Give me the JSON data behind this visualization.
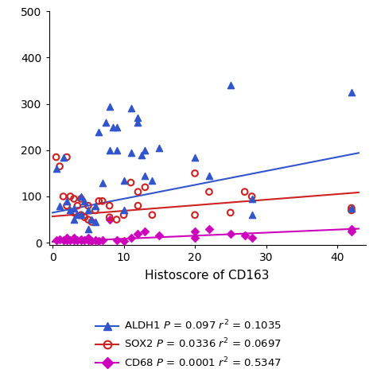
{
  "xlabel": "Histoscore of CD163",
  "xlim": [
    -0.5,
    44
  ],
  "ylim": [
    -5,
    500
  ],
  "xticks": [
    0,
    10,
    20,
    30,
    40
  ],
  "yticks": [
    0,
    100,
    200,
    300,
    400,
    500
  ],
  "aldh1_color": "#3355cc",
  "sox2_color": "#cc2222",
  "cd68_color": "#cc00bb",
  "aldh1_x": [
    0.5,
    1,
    1.5,
    2,
    2.5,
    3,
    3,
    3.5,
    4,
    4,
    4.5,
    5,
    5,
    5.5,
    6,
    6,
    6.5,
    7,
    7.5,
    8,
    8,
    8.5,
    9,
    9,
    10,
    10,
    11,
    11,
    12,
    12,
    12.5,
    13,
    13,
    14,
    15,
    20,
    22,
    25,
    28,
    28,
    42,
    42
  ],
  "aldh1_y": [
    160,
    80,
    185,
    90,
    70,
    75,
    50,
    60,
    100,
    60,
    90,
    70,
    30,
    50,
    80,
    45,
    240,
    130,
    260,
    295,
    200,
    250,
    250,
    200,
    135,
    70,
    290,
    195,
    260,
    270,
    190,
    200,
    145,
    135,
    205,
    185,
    145,
    340,
    95,
    60,
    75,
    325
  ],
  "sox2_x": [
    0.5,
    1,
    1.5,
    2,
    2,
    2.5,
    3,
    3,
    3.5,
    4,
    4,
    4.5,
    5,
    5,
    5.5,
    6,
    6.5,
    7,
    8,
    8,
    9,
    10,
    11,
    12,
    12,
    13,
    14,
    20,
    20,
    22,
    25,
    27,
    28,
    42,
    42
  ],
  "sox2_y": [
    185,
    165,
    100,
    80,
    185,
    100,
    95,
    65,
    80,
    95,
    60,
    55,
    80,
    50,
    45,
    70,
    90,
    90,
    80,
    55,
    50,
    60,
    130,
    110,
    80,
    120,
    60,
    150,
    60,
    110,
    65,
    110,
    100,
    75,
    70
  ],
  "cd68_x": [
    0.5,
    1,
    1.5,
    2,
    2,
    2.5,
    3,
    3,
    3.5,
    4,
    4,
    4.5,
    5,
    5,
    5.5,
    6,
    6.5,
    7,
    8,
    9,
    10,
    11,
    12,
    13,
    15,
    20,
    20,
    22,
    25,
    27,
    28,
    42,
    42
  ],
  "cd68_y": [
    5,
    8,
    5,
    10,
    5,
    5,
    10,
    5,
    5,
    8,
    5,
    5,
    10,
    5,
    3,
    5,
    3,
    5,
    50,
    5,
    3,
    10,
    20,
    25,
    15,
    25,
    10,
    30,
    20,
    15,
    10,
    30,
    25
  ],
  "aldh1_slope": 3.0,
  "aldh1_intercept": 65,
  "sox2_slope": 1.2,
  "sox2_intercept": 57,
  "cd68_slope": 0.66,
  "cd68_intercept": 2,
  "legend_labels": [
    "ALDH1 $P$ = 0.097 $r^2$ = 0.1035",
    "SOX2 $P$ = 0.0336 $r^2$ = 0.0697",
    "CD68 $P$ = 0.0001 $r^2$ = 0.5347"
  ],
  "background_color": "#ffffff"
}
